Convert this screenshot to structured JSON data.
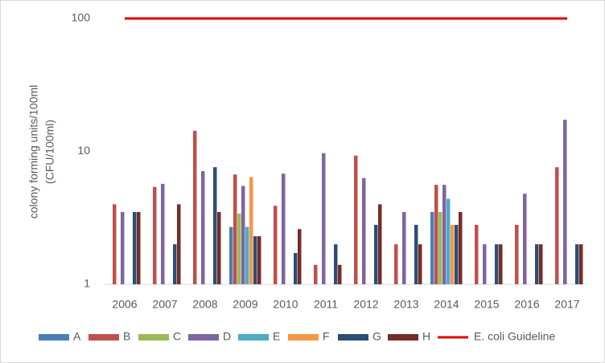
{
  "chart_data": {
    "type": "bar",
    "ylabel": [
      "colony forming units/100ml",
      "(CFU/100ml)"
    ],
    "categories": [
      "2006",
      "2007",
      "2008",
      "2009",
      "2010",
      "2011",
      "2012",
      "2013",
      "2014",
      "2015",
      "2016",
      "2017"
    ],
    "series": [
      {
        "name": "A",
        "color": "#4a7ebb",
        "values": [
          null,
          null,
          null,
          2.7,
          null,
          null,
          null,
          null,
          3.5,
          null,
          null,
          null
        ]
      },
      {
        "name": "B",
        "color": "#c0504d",
        "values": [
          4,
          5.4,
          14.3,
          6.7,
          3.9,
          1.4,
          9.3,
          2,
          5.6,
          2.8,
          2.8,
          7.6
        ]
      },
      {
        "name": "C",
        "color": "#9bbb59",
        "values": [
          null,
          null,
          null,
          3.4,
          null,
          null,
          null,
          null,
          3.5,
          null,
          null,
          null
        ]
      },
      {
        "name": "D",
        "color": "#8064a2",
        "values": [
          3.5,
          5.7,
          7.1,
          5.5,
          6.8,
          9.7,
          6.3,
          3.5,
          5.6,
          2,
          4.8,
          17.3
        ]
      },
      {
        "name": "E",
        "color": "#4bacc6",
        "values": [
          null,
          null,
          null,
          2.7,
          null,
          null,
          null,
          null,
          4.4,
          null,
          null,
          null
        ]
      },
      {
        "name": "F",
        "color": "#f79646",
        "values": [
          null,
          null,
          null,
          6.4,
          null,
          null,
          null,
          null,
          2.8,
          null,
          null,
          null
        ]
      },
      {
        "name": "G",
        "color": "#2c4d75",
        "values": [
          3.5,
          2,
          7.6,
          2.3,
          1.72,
          2,
          2.8,
          2.8,
          2.8,
          2,
          2,
          2
        ]
      },
      {
        "name": "H",
        "color": "#772c2a",
        "values": [
          3.5,
          4,
          3.5,
          2.3,
          2.6,
          1.4,
          4,
          2,
          3.5,
          2,
          2,
          2
        ]
      },
      {
        "name": "E. coli Guideline",
        "color": "#e00000",
        "type": "line",
        "values": [
          100,
          100,
          100,
          100,
          100,
          100,
          100,
          100,
          100,
          100,
          100,
          100
        ]
      }
    ],
    "ylim": [
      1,
      100
    ],
    "yticks": [
      1,
      10,
      100
    ],
    "log_scale": true,
    "grid": false,
    "legend": "bottom"
  }
}
